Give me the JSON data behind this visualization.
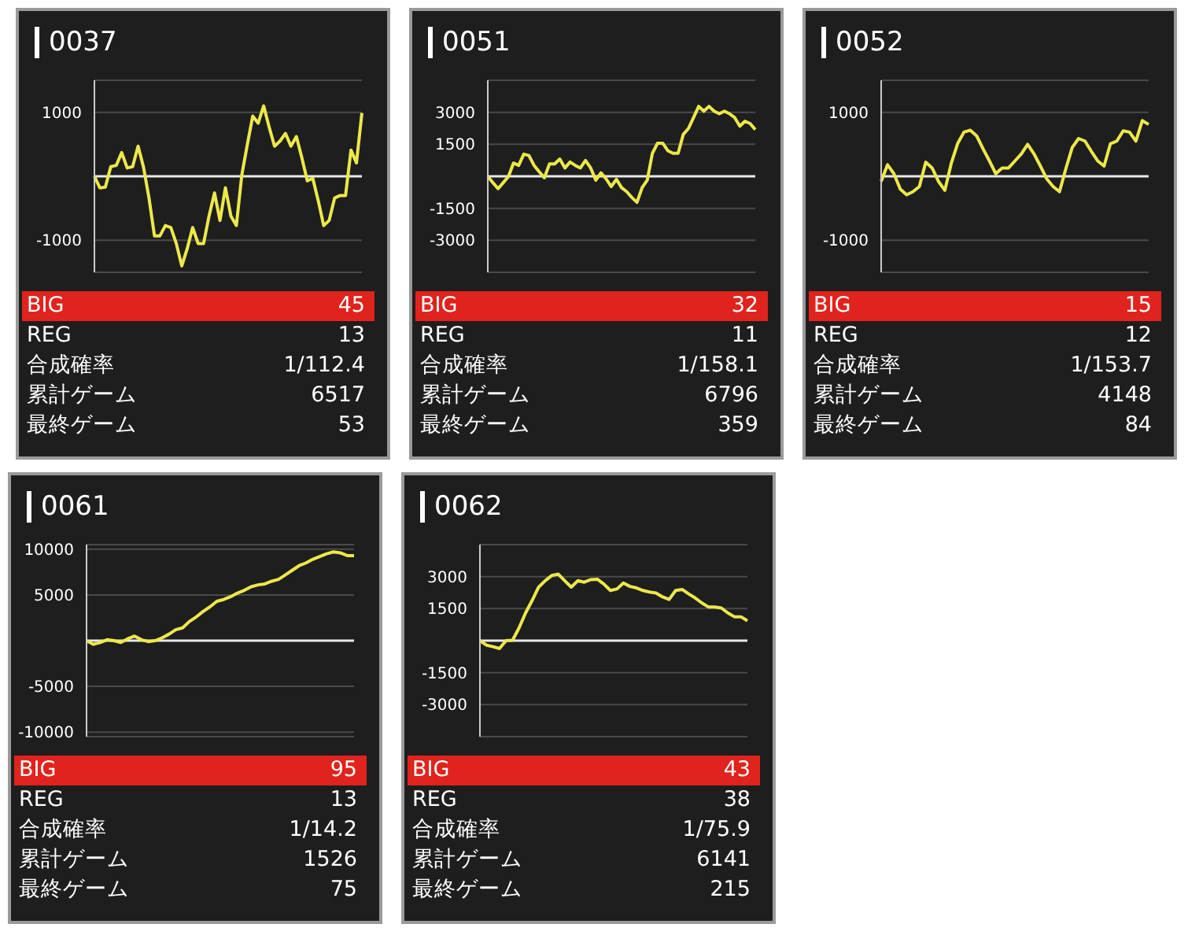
{
  "chart_data": [
    {
      "type": "line",
      "title": "0037",
      "categories": [
        null,
        null,
        null,
        null,
        null,
        null,
        null,
        null,
        null,
        null,
        null,
        null,
        null,
        null,
        null,
        null,
        null,
        null,
        null,
        null,
        null,
        null,
        null,
        null,
        null,
        null,
        null,
        null,
        null,
        null,
        null,
        null,
        null,
        null,
        null,
        null,
        null,
        null,
        null,
        null,
        null,
        null,
        null,
        null,
        null,
        null,
        null,
        null,
        null,
        null
      ],
      "values": [
        0,
        -180,
        -170,
        150,
        170,
        370,
        130,
        150,
        470,
        140,
        -340,
        -930,
        -930,
        -770,
        -800,
        -1050,
        -1400,
        -1130,
        -800,
        -1050,
        -1050,
        -620,
        -260,
        -690,
        -180,
        -620,
        -770,
        20,
        490,
        940,
        830,
        1100,
        770,
        470,
        550,
        670,
        470,
        620,
        290,
        -70,
        -30,
        -380,
        -770,
        -690,
        -340,
        -300,
        -300,
        410,
        210,
        990
      ],
      "color": "#ece84a",
      "ylim": [
        -1500,
        1500
      ],
      "yticks": [
        -1000,
        1000
      ],
      "grid": "y",
      "tick_labels": "y",
      "ref_lines": [
        {
          "axis": "y",
          "value": 0,
          "color": "#e8e8e8"
        }
      ],
      "annotations": [
        "BIG",
        "45",
        "REG",
        "13",
        "合成確率",
        "1/112.4",
        "累計ゲーム",
        "6517",
        "最終ゲーム",
        "53"
      ]
    },
    {
      "type": "line",
      "title": "0051",
      "categories": [
        null,
        null,
        null,
        null,
        null,
        null,
        null,
        null,
        null,
        null,
        null,
        null,
        null,
        null,
        null,
        null,
        null,
        null,
        null,
        null,
        null,
        null,
        null,
        null,
        null,
        null,
        null,
        null,
        null,
        null,
        null,
        null,
        null,
        null,
        null,
        null,
        null,
        null,
        null,
        null,
        null,
        null,
        null,
        null,
        null,
        null,
        null,
        null,
        null,
        null,
        null,
        null,
        null
      ],
      "values": [
        0,
        -300,
        -580,
        -300,
        -20,
        620,
        510,
        1040,
        970,
        510,
        210,
        -70,
        580,
        580,
        810,
        390,
        670,
        510,
        390,
        740,
        390,
        -180,
        160,
        -120,
        -480,
        -140,
        -530,
        -720,
        -990,
        -1220,
        -530,
        -180,
        1080,
        1550,
        1550,
        1200,
        1080,
        1080,
        1960,
        2240,
        2750,
        3280,
        3050,
        3280,
        3050,
        2930,
        3050,
        2930,
        2750,
        2350,
        2580,
        2470,
        2190
      ],
      "color": "#ece84a",
      "ylim": [
        -4500,
        4500
      ],
      "yticks": [
        -3000,
        -1500,
        1500,
        3000
      ],
      "grid": "y",
      "tick_labels": "y",
      "ref_lines": [
        {
          "axis": "y",
          "value": 0,
          "color": "#e8e8e8"
        }
      ],
      "annotations": [
        "BIG",
        "32",
        "REG",
        "11",
        "合成確率",
        "1/158.1",
        "累計ゲーム",
        "6796",
        "最終ゲーム",
        "359"
      ]
    },
    {
      "type": "line",
      "title": "0052",
      "categories": [
        null,
        null,
        null,
        null,
        null,
        null,
        null,
        null,
        null,
        null,
        null,
        null,
        null,
        null,
        null,
        null,
        null,
        null,
        null,
        null,
        null,
        null,
        null,
        null,
        null,
        null,
        null,
        null,
        null,
        null,
        null,
        null,
        null,
        null,
        null,
        null,
        null,
        null,
        null,
        null,
        null,
        null,
        null
      ],
      "values": [
        -80,
        180,
        40,
        -200,
        -290,
        -240,
        -160,
        220,
        130,
        -80,
        -220,
        200,
        510,
        690,
        720,
        630,
        430,
        240,
        40,
        130,
        130,
        240,
        350,
        500,
        350,
        160,
        -40,
        -160,
        -240,
        120,
        450,
        590,
        550,
        390,
        240,
        160,
        510,
        550,
        710,
        690,
        550,
        870,
        810
      ],
      "color": "#ece84a",
      "ylim": [
        -1500,
        1500
      ],
      "yticks": [
        -1000,
        1000
      ],
      "grid": "y",
      "tick_labels": "y",
      "ref_lines": [
        {
          "axis": "y",
          "value": 0,
          "color": "#e8e8e8"
        }
      ],
      "annotations": [
        "BIG",
        "15",
        "REG",
        "12",
        "合成確率",
        "1/153.7",
        "累計ゲーム",
        "4148",
        "最終ゲーム",
        "84"
      ]
    },
    {
      "type": "line",
      "title": "0061",
      "categories": [
        null,
        null,
        null,
        null,
        null,
        null,
        null,
        null,
        null,
        null,
        null,
        null,
        null,
        null,
        null,
        null,
        null,
        null,
        null,
        null,
        null,
        null,
        null,
        null,
        null,
        null,
        null,
        null,
        null,
        null,
        null,
        null,
        null,
        null,
        null,
        null,
        null,
        null,
        null,
        null
      ],
      "values": [
        0,
        -400,
        -200,
        100,
        0,
        -200,
        200,
        500,
        100,
        -100,
        0,
        300,
        700,
        1200,
        1400,
        2100,
        2600,
        3200,
        3700,
        4300,
        4500,
        4800,
        5200,
        5500,
        5900,
        6100,
        6200,
        6500,
        6700,
        7200,
        7700,
        8200,
        8500,
        8900,
        9200,
        9500,
        9700,
        9600,
        9300,
        9300
      ],
      "color": "#ece84a",
      "ylim": [
        -10500,
        10500
      ],
      "yticks": [
        -10000,
        -5000,
        5000,
        10000
      ],
      "grid": "y",
      "tick_labels": "y",
      "ref_lines": [
        {
          "axis": "y",
          "value": 0,
          "color": "#e8e8e8"
        }
      ],
      "annotations": [
        "BIG",
        "95",
        "REG",
        "13",
        "合成確率",
        "1/14.2",
        "累計ゲーム",
        "1526",
        "最終ゲーム",
        "75"
      ]
    },
    {
      "type": "line",
      "title": "0062",
      "categories": [
        null,
        null,
        null,
        null,
        null,
        null,
        null,
        null,
        null,
        null,
        null,
        null,
        null,
        null,
        null,
        null,
        null,
        null,
        null,
        null,
        null,
        null,
        null,
        null,
        null,
        null,
        null,
        null,
        null,
        null,
        null,
        null,
        null,
        null,
        null,
        null,
        null,
        null,
        null,
        null,
        null,
        null
      ],
      "values": [
        0,
        -210,
        -280,
        -370,
        0,
        20,
        600,
        1300,
        1880,
        2510,
        2810,
        3050,
        3120,
        2810,
        2510,
        2810,
        2740,
        2860,
        2880,
        2650,
        2350,
        2420,
        2700,
        2540,
        2470,
        2350,
        2280,
        2230,
        2050,
        1930,
        2350,
        2400,
        2190,
        2000,
        1770,
        1580,
        1580,
        1530,
        1300,
        1120,
        1120,
        930
      ],
      "color": "#ece84a",
      "ylim": [
        -4500,
        4500
      ],
      "yticks": [
        -3000,
        -1500,
        1500,
        3000
      ],
      "grid": "y",
      "tick_labels": "y",
      "ref_lines": [
        {
          "axis": "y",
          "value": 0,
          "color": "#e8e8e8"
        }
      ],
      "annotations": [
        "BIG",
        "43",
        "REG",
        "38",
        "合成確率",
        "1/75.9",
        "累計ゲーム",
        "6141",
        "最終ゲーム",
        "215"
      ]
    }
  ]
}
